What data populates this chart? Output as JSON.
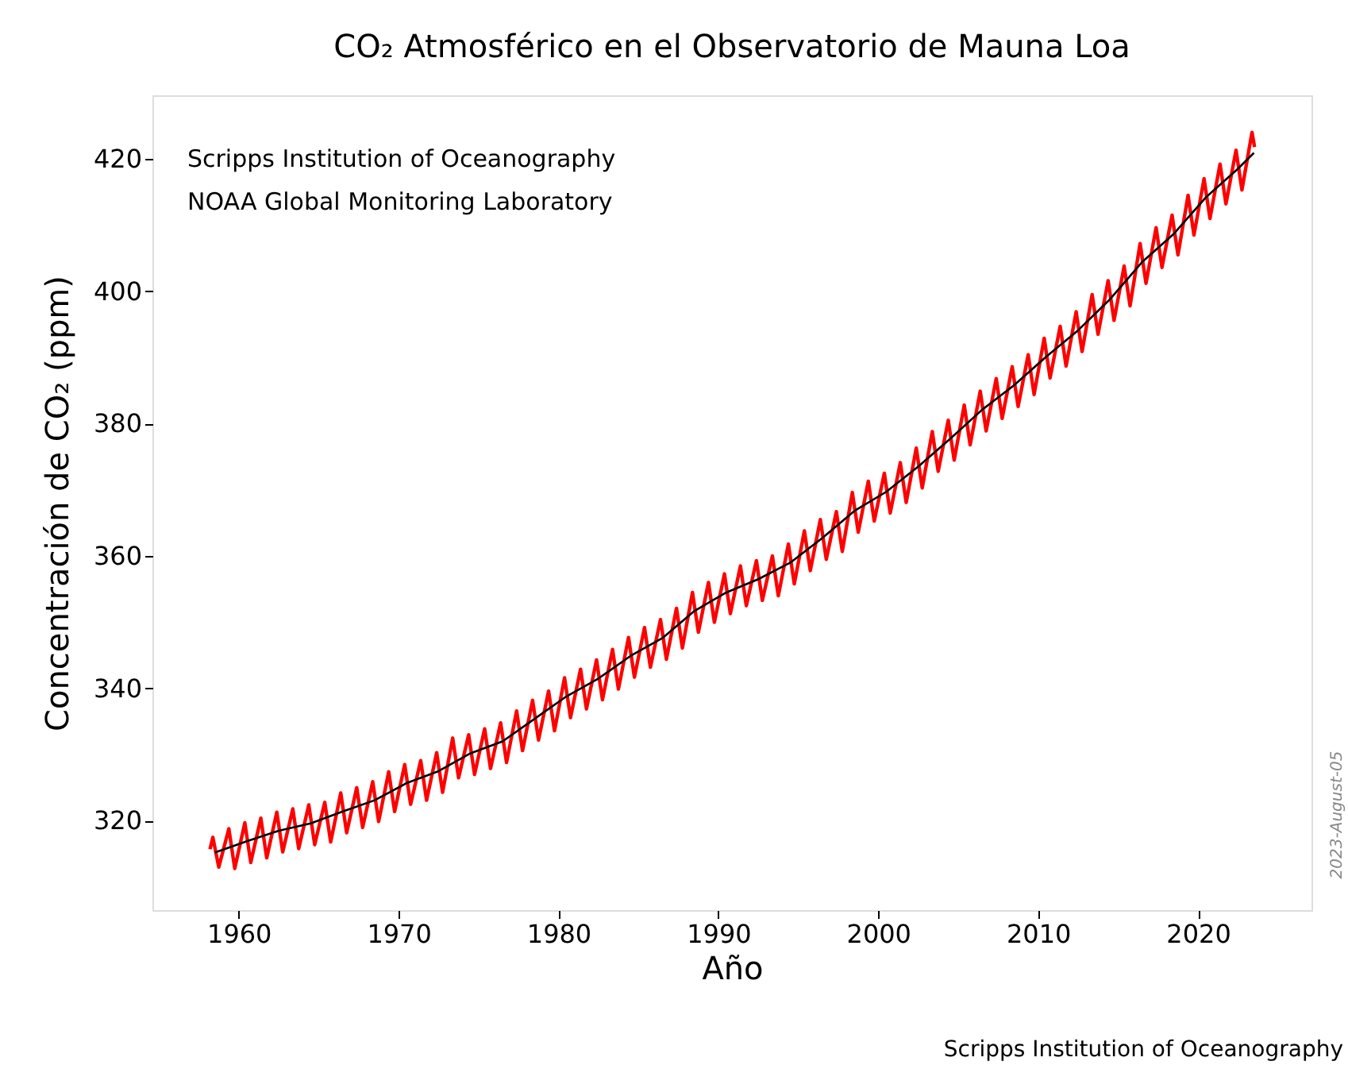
{
  "chart_data": {
    "type": "line",
    "title": "CO₂ Atmosférico en el Observatorio de Mauna Loa",
    "xlabel": "Año",
    "ylabel": "Concentración de CO₂ (ppm)",
    "xlim": [
      1954.6,
      2027.1
    ],
    "ylim": [
      306.5,
      429.6
    ],
    "xticks": [
      1960,
      1970,
      1980,
      1990,
      2000,
      2010,
      2020
    ],
    "yticks": [
      320,
      340,
      360,
      380,
      400,
      420
    ],
    "grid": false,
    "marker": "none",
    "line_style": "solid",
    "annotations": [
      "Scripps Institution of Oceanography",
      "NOAA Global Monitoring Laboratory",
      "2023-August-05",
      "Scripps Institution of Oceanography"
    ],
    "series": [
      {
        "color": "#ff0000",
        "x": [
          1958.2,
          1958.38,
          1958.75,
          1959.38,
          1959.75,
          1960.38,
          1960.75,
          1961.38,
          1961.75,
          1962.38,
          1962.75,
          1963.38,
          1963.75,
          1964.38,
          1964.75,
          1965.38,
          1965.75,
          1966.38,
          1966.75,
          1967.38,
          1967.75,
          1968.38,
          1968.75,
          1969.38,
          1969.75,
          1970.38,
          1970.75,
          1971.38,
          1971.75,
          1972.38,
          1972.75,
          1973.38,
          1973.75,
          1974.38,
          1974.75,
          1975.38,
          1975.75,
          1976.38,
          1976.75,
          1977.38,
          1977.75,
          1978.38,
          1978.75,
          1979.38,
          1979.75,
          1980.38,
          1980.75,
          1981.38,
          1981.75,
          1982.38,
          1982.75,
          1983.38,
          1983.75,
          1984.38,
          1984.75,
          1985.38,
          1985.75,
          1986.38,
          1986.75,
          1987.38,
          1987.75,
          1988.38,
          1988.75,
          1989.38,
          1989.75,
          1990.38,
          1990.75,
          1991.38,
          1991.75,
          1992.38,
          1992.75,
          1993.38,
          1993.75,
          1994.38,
          1994.75,
          1995.38,
          1995.75,
          1996.38,
          1996.75,
          1997.38,
          1997.75,
          1998.38,
          1998.75,
          1999.38,
          1999.75,
          2000.38,
          2000.75,
          2001.38,
          2001.75,
          2002.38,
          2002.75,
          2003.38,
          2003.75,
          2004.38,
          2004.75,
          2005.38,
          2005.75,
          2006.38,
          2006.75,
          2007.38,
          2007.75,
          2008.38,
          2008.75,
          2009.38,
          2009.75,
          2010.38,
          2010.75,
          2011.38,
          2011.75,
          2012.38,
          2012.75,
          2013.38,
          2013.75,
          2014.38,
          2014.75,
          2015.38,
          2015.75,
          2016.38,
          2016.75,
          2017.38,
          2017.75,
          2018.38,
          2018.75,
          2019.38,
          2019.75,
          2020.38,
          2020.75,
          2021.38,
          2021.75,
          2022.38,
          2022.75,
          2023.38,
          2023.54
        ],
        "values": [
          315.7,
          317.5,
          313.0,
          318.8,
          312.8,
          319.7,
          313.7,
          320.4,
          314.4,
          321.3,
          315.3,
          321.8,
          315.8,
          322.4,
          316.4,
          322.8,
          316.8,
          324.2,
          318.2,
          325.0,
          319.0,
          325.9,
          319.9,
          327.4,
          321.4,
          328.5,
          322.5,
          329.1,
          323.1,
          330.3,
          324.3,
          332.5,
          326.5,
          333.0,
          327.0,
          333.9,
          327.9,
          334.8,
          328.8,
          336.6,
          330.6,
          338.2,
          332.2,
          339.6,
          333.6,
          341.6,
          335.6,
          342.9,
          336.9,
          344.3,
          338.3,
          345.9,
          339.9,
          347.7,
          341.7,
          349.2,
          343.2,
          350.4,
          344.4,
          352.1,
          346.1,
          354.5,
          348.5,
          356.0,
          350.0,
          357.3,
          351.3,
          358.5,
          352.5,
          359.3,
          353.3,
          360.0,
          354.0,
          361.8,
          355.8,
          363.8,
          357.8,
          365.5,
          359.5,
          366.7,
          360.7,
          369.6,
          363.6,
          371.3,
          365.3,
          372.5,
          366.5,
          374.1,
          368.1,
          376.3,
          370.3,
          378.8,
          372.8,
          380.5,
          374.5,
          382.8,
          376.8,
          384.9,
          378.9,
          386.8,
          380.8,
          388.6,
          382.6,
          390.4,
          384.4,
          392.9,
          386.9,
          394.7,
          388.7,
          396.9,
          390.9,
          399.5,
          393.5,
          401.6,
          395.6,
          403.8,
          397.8,
          407.2,
          401.2,
          409.6,
          403.6,
          411.5,
          405.5,
          414.5,
          408.5,
          417.0,
          411.0,
          419.2,
          413.2,
          421.3,
          415.3,
          424.0,
          421.8
        ]
      },
      {
        "color": "#000000",
        "x": [
          1958.5,
          1960.5,
          1962.5,
          1964.5,
          1966.5,
          1968.5,
          1970.5,
          1972.5,
          1974.5,
          1976.5,
          1978.5,
          1980.5,
          1982.5,
          1984.5,
          1986.5,
          1988.5,
          1990.5,
          1992.5,
          1994.5,
          1996.5,
          1998.5,
          2000.5,
          2002.5,
          2004.5,
          2006.5,
          2008.5,
          2010.5,
          2012.5,
          2014.5,
          2016.5,
          2018.5,
          2020.5,
          2022.5,
          2023.5
        ],
        "values": [
          315.2,
          316.9,
          318.5,
          319.6,
          321.4,
          323.1,
          325.7,
          327.5,
          330.2,
          332.0,
          335.4,
          338.8,
          341.5,
          344.9,
          347.6,
          351.7,
          354.5,
          356.5,
          359.0,
          362.7,
          366.8,
          369.7,
          373.5,
          377.7,
          382.1,
          385.8,
          390.1,
          394.1,
          398.8,
          404.4,
          408.7,
          414.2,
          418.5,
          420.9
        ]
      }
    ]
  }
}
